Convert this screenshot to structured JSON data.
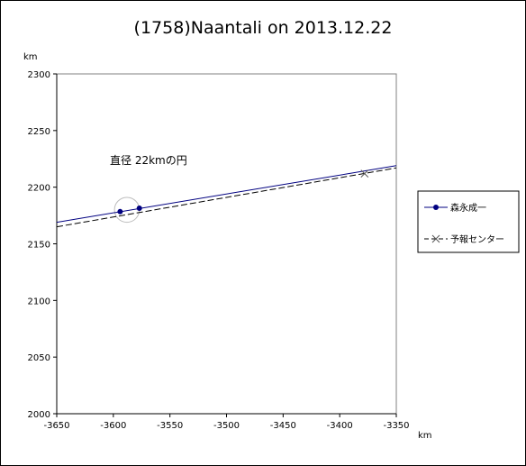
{
  "chart_data": {
    "type": "line",
    "title": "(1758)Naantali on 2013.12.22",
    "xlabel": "km",
    "ylabel": "km",
    "xlim": [
      -3650,
      -3350
    ],
    "ylim": [
      2000,
      2300
    ],
    "x_ticks": [
      "-3650",
      "-3600",
      "-3550",
      "-3500",
      "-3450",
      "-3400",
      "-3350"
    ],
    "y_ticks": [
      "2000",
      "2050",
      "2100",
      "2150",
      "2200",
      "2250",
      "2300"
    ],
    "annotation": "直径 22kmの円",
    "circle": {
      "center": [
        -3588,
        2180
      ],
      "diameter": 22
    },
    "legend_position": "right",
    "series": [
      {
        "name": "森永成一",
        "color": "#000080",
        "style": "solid",
        "marker": "dot",
        "line": [
          [
            -3650,
            2169
          ],
          [
            -3350,
            2219
          ]
        ],
        "points": [
          [
            -3594,
            2178.4
          ],
          [
            -3577,
            2181.4
          ]
        ]
      },
      {
        "name": "予報センター",
        "color": "#000000",
        "style": "dashed",
        "marker": "x",
        "line": [
          [
            -3650,
            2165
          ],
          [
            -3350,
            2217
          ]
        ],
        "points": [
          [
            -3378,
            2212
          ]
        ]
      }
    ]
  }
}
